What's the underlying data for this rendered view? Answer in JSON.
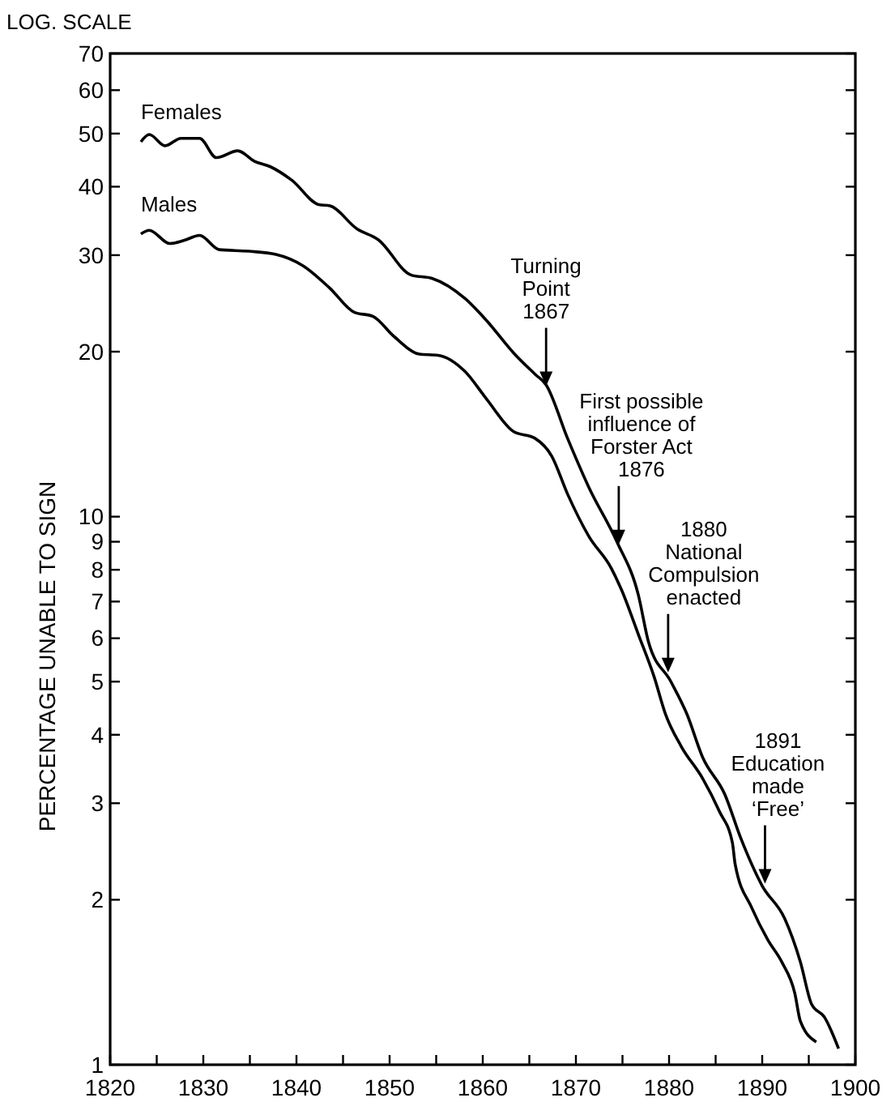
{
  "chart_data": {
    "type": "line",
    "ylabel": "PERCENTAGE UNABLE TO SIGN",
    "log": "y",
    "xlim": [
      1820,
      1900
    ],
    "ylim": [
      1,
      70
    ],
    "xticks": [
      1820,
      {
        "value": 1825,
        "label": null
      },
      1830,
      {
        "value": 1835,
        "label": null
      },
      1840,
      {
        "value": 1845,
        "label": null
      },
      1850,
      {
        "value": 1855,
        "label": null
      },
      1860,
      {
        "value": 1865,
        "label": null
      },
      1870,
      {
        "value": 1875,
        "label": null
      },
      1880,
      {
        "value": 1885,
        "label": null
      },
      1890,
      {
        "value": 1895,
        "label": null
      },
      1900
    ],
    "yticks": [
      1,
      2,
      3,
      4,
      5,
      6,
      7,
      8,
      9,
      10,
      20,
      30,
      40,
      50,
      60,
      70
    ],
    "grid": false,
    "marker": "none",
    "line_style": "solid",
    "series": [
      {
        "name": "Females",
        "color": "#000000",
        "x": [
          1823.3,
          1824.2,
          1825.9,
          1827.6,
          1829.6,
          1831.4,
          1833.7,
          1835.5,
          1837.2,
          1839.5,
          1842.4,
          1843.6,
          1846.5,
          1848.8,
          1852.3,
          1854.6,
          1858.1,
          1860.4,
          1863.3,
          1865.6,
          1866.8,
          1869.1,
          1871.4,
          1874.4,
          1876.7,
          1877.8,
          1880.2,
          1881.9,
          1883.6,
          1886,
          1887.7,
          1890,
          1892.4,
          1894.1,
          1895.3,
          1896.7,
          1898.2
        ],
        "values": [
          48.3,
          49.8,
          47.5,
          49,
          49,
          45.2,
          46.5,
          44.5,
          43.5,
          41.1,
          37.1,
          36.9,
          33.5,
          32,
          27.6,
          27.2,
          25,
          22.8,
          19.9,
          18.2,
          17.4,
          13.9,
          11.3,
          9,
          7.2,
          5.9,
          5,
          4.37,
          3.64,
          3.11,
          2.59,
          2.12,
          1.85,
          1.54,
          1.29,
          1.22,
          1.07
        ]
      },
      {
        "name": "Males",
        "color": "#000000",
        "x": [
          1823.3,
          1824.2,
          1826.4,
          1827.9,
          1829.6,
          1831.7,
          1834.9,
          1837.8,
          1840.7,
          1843.6,
          1846.2,
          1848.2,
          1850.5,
          1853.2,
          1855.2,
          1858.1,
          1860.4,
          1863.3,
          1865.6,
          1867.4,
          1869.1,
          1871.4,
          1873.8,
          1874.9,
          1876.7,
          1878.4,
          1879.6,
          1881.3,
          1883.6,
          1885.4,
          1886.8,
          1887.1,
          1888.9,
          1890.6,
          1892.1,
          1893.5,
          1894.1,
          1895.8
        ],
        "values": [
          32.8,
          33.3,
          31.5,
          31.9,
          32.6,
          30.7,
          30.5,
          30.1,
          28.7,
          26.1,
          23.6,
          23.2,
          21.3,
          19.8,
          19.7,
          18.4,
          16.4,
          14.3,
          13.9,
          12.9,
          11,
          9.2,
          8.05,
          7.35,
          6.1,
          5.1,
          4.37,
          3.81,
          3.33,
          2.9,
          2.54,
          2.32,
          1.93,
          1.69,
          1.54,
          1.35,
          1.2,
          1.1
        ]
      }
    ],
    "annotations": [
      "LOG. SCALE",
      {
        "text": "Turning\nPoint\n1867",
        "x": 1866.8,
        "y": 17.3
      },
      {
        "text": "First possible\ninfluence of\nForster Act\n1876",
        "x": 1874.6,
        "y": 8.9
      },
      {
        "text": "1880\nNational\nCompulsion\nenacted",
        "x": 1879.9,
        "y": 5.2
      },
      {
        "text": "1891\nEducation\nmade\n‘Free’",
        "x": 1890.3,
        "y": 2.14
      }
    ]
  }
}
